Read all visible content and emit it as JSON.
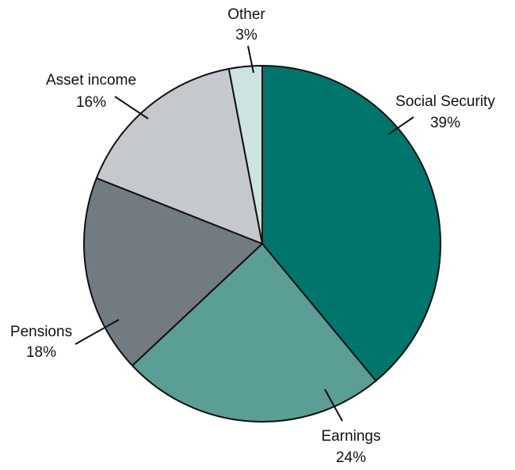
{
  "chart_data": {
    "type": "pie",
    "start": "top",
    "direction": "clockwise",
    "categories": [
      "Social Security",
      "Earnings",
      "Pensions",
      "Asset income",
      "Other"
    ],
    "values": [
      39,
      24,
      18,
      16,
      3
    ],
    "value_labels": [
      "39%",
      "24%",
      "18%",
      "16%",
      "3%"
    ],
    "colors": [
      "#00756b",
      "#5a9e96",
      "#737b82",
      "#c5c8cc",
      "#cde3df"
    ],
    "legend": "none"
  }
}
